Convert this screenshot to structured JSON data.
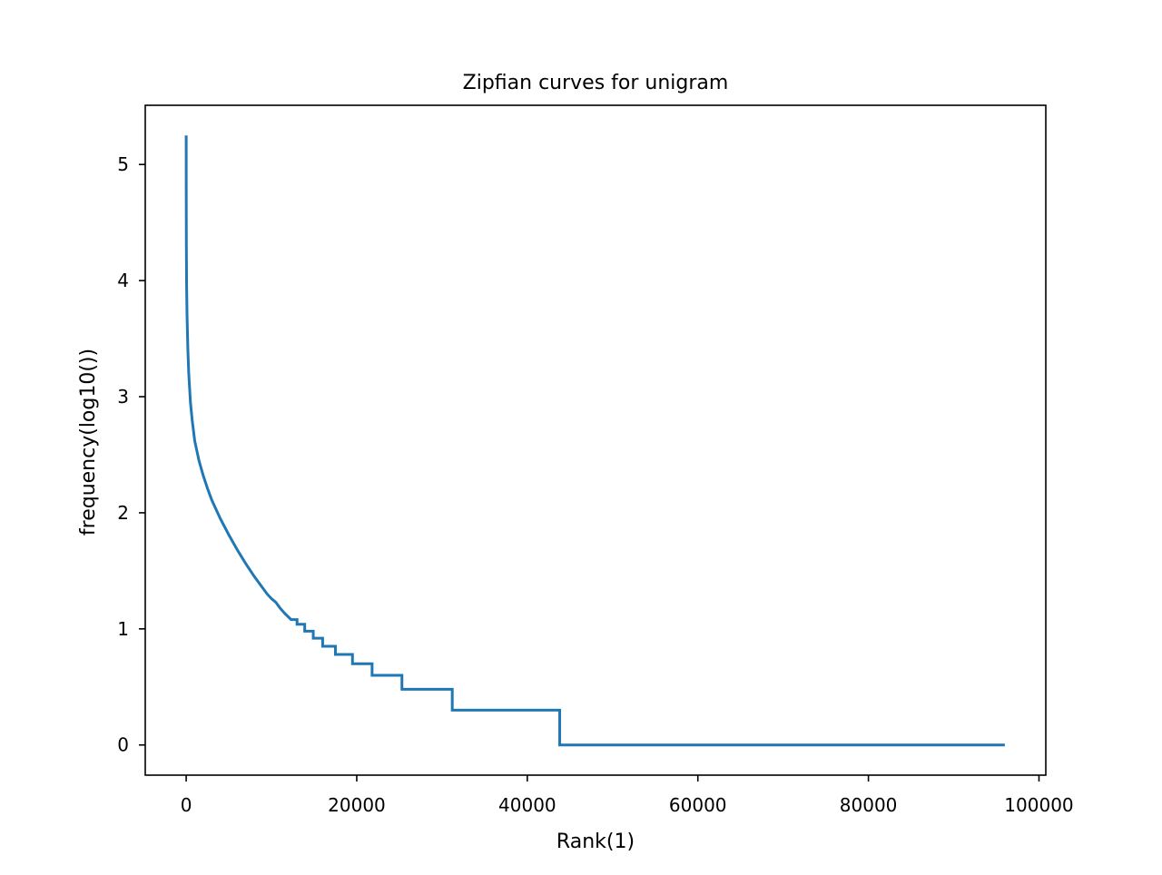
{
  "chart_data": {
    "type": "line",
    "title": "Zipfian curves for unigram",
    "xlabel": "Rank(1)",
    "ylabel": "frequency(log10())",
    "xlim": [
      -4800,
      100800
    ],
    "ylim": [
      -0.26,
      5.51
    ],
    "x_ticks": [
      0,
      20000,
      40000,
      60000,
      80000,
      100000
    ],
    "x_tick_labels": [
      "0",
      "20000",
      "40000",
      "60000",
      "80000",
      "100000"
    ],
    "y_ticks": [
      0,
      1,
      2,
      3,
      4,
      5
    ],
    "y_tick_labels": [
      "0",
      "1",
      "2",
      "3",
      "4",
      "5"
    ],
    "grid": false,
    "series": [
      {
        "color": "#1f77b4",
        "points": [
          [
            1,
            5.25
          ],
          [
            5,
            4.8
          ],
          [
            20,
            4.3
          ],
          [
            50,
            3.95
          ],
          [
            100,
            3.7
          ],
          [
            200,
            3.4
          ],
          [
            300,
            3.2
          ],
          [
            500,
            2.95
          ],
          [
            700,
            2.8
          ],
          [
            1000,
            2.62
          ],
          [
            1500,
            2.45
          ],
          [
            2000,
            2.32
          ],
          [
            2500,
            2.21
          ],
          [
            3000,
            2.11
          ],
          [
            3500,
            2.03
          ],
          [
            4000,
            1.95
          ],
          [
            5000,
            1.81
          ],
          [
            6000,
            1.68
          ],
          [
            7000,
            1.56
          ],
          [
            8000,
            1.45
          ],
          [
            9000,
            1.35
          ],
          [
            9500,
            1.3
          ],
          [
            10000,
            1.26
          ],
          [
            10500,
            1.23
          ],
          [
            11000,
            1.18
          ],
          [
            11600,
            1.13
          ],
          [
            12300,
            1.08
          ],
          [
            13000,
            1.04
          ],
          [
            13900,
            0.98
          ],
          [
            14900,
            0.92
          ],
          [
            16000,
            0.85
          ],
          [
            17500,
            0.78
          ],
          [
            19500,
            0.7
          ],
          [
            21800,
            0.6
          ],
          [
            25300,
            0.48
          ],
          [
            31200,
            0.3
          ],
          [
            43800,
            0.0
          ],
          [
            96000,
            0.0
          ]
        ]
      }
    ]
  }
}
